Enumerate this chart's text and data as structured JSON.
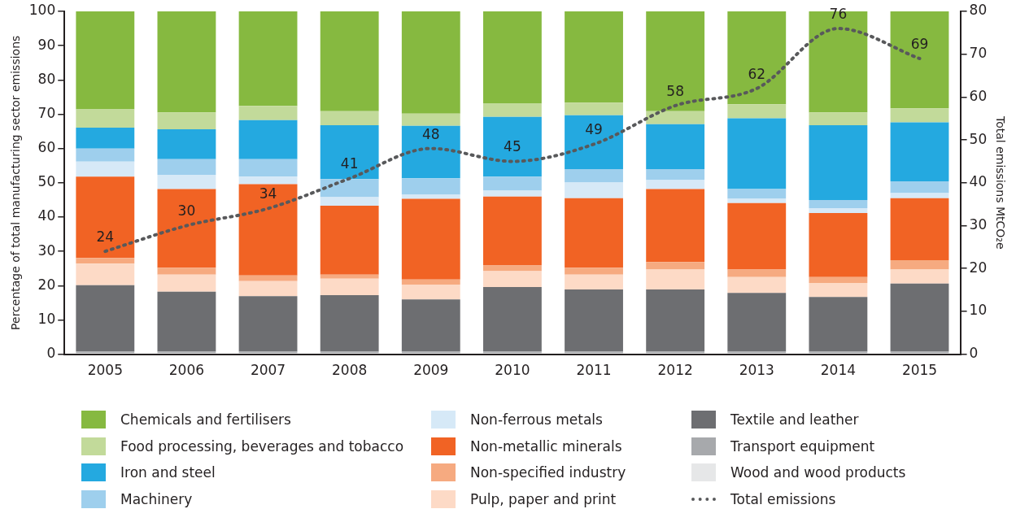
{
  "chart_data": {
    "type": "bar",
    "stacked": true,
    "ylabel": "Percentage of total manufacturing sector emissions",
    "y2label": "Total emissions MtCO₂e",
    "categories": [
      "2005",
      "2006",
      "2007",
      "2008",
      "2009",
      "2010",
      "2011",
      "2012",
      "2013",
      "2014",
      "2015"
    ],
    "ylim": [
      0,
      100
    ],
    "yticks": [
      0,
      10,
      20,
      30,
      40,
      50,
      60,
      70,
      80,
      90,
      100
    ],
    "y2lim": [
      0,
      80
    ],
    "y2ticks": [
      0,
      10,
      20,
      30,
      40,
      50,
      60,
      70,
      80
    ],
    "grid": false,
    "legend": "bottom",
    "series": [
      {
        "name": "Wood and wood products",
        "color": "#e6e7e8",
        "values": [
          0.3,
          0.3,
          0.3,
          0.3,
          0.3,
          0.3,
          0.3,
          0.3,
          0.3,
          0.3,
          0.3
        ]
      },
      {
        "name": "Transport equipment",
        "color": "#a7a9ac",
        "values": [
          0.5,
          0.5,
          0.5,
          0.5,
          0.5,
          0.5,
          0.5,
          0.5,
          0.5,
          0.5,
          0.5
        ]
      },
      {
        "name": "Textile and leather",
        "color": "#6d6e71",
        "values": [
          19.3,
          17.4,
          16.1,
          16.4,
          15.2,
          18.8,
          18.1,
          18.1,
          17.1,
          15.9,
          19.8
        ]
      },
      {
        "name": "Pulp, paper and print",
        "color": "#fddac6",
        "values": [
          6.3,
          5.0,
          4.4,
          4.8,
          4.3,
          4.6,
          4.3,
          5.8,
          4.6,
          4.1,
          4.1
        ]
      },
      {
        "name": "Non-specified industry",
        "color": "#f6aa80",
        "values": [
          1.7,
          2.0,
          1.7,
          1.2,
          1.5,
          1.7,
          2.0,
          2.2,
          2.2,
          1.7,
          2.7
        ]
      },
      {
        "name": "Non-metallic minerals",
        "color": "#f16324",
        "values": [
          23.7,
          23.0,
          26.6,
          20.1,
          23.5,
          20.1,
          20.3,
          21.3,
          19.4,
          18.7,
          18.1
        ]
      },
      {
        "name": "Non-ferrous metals",
        "color": "#d6e9f7",
        "values": [
          4.4,
          4.1,
          2.2,
          2.5,
          1.2,
          1.7,
          4.6,
          2.6,
          1.2,
          1.4,
          1.5
        ]
      },
      {
        "name": "Machinery",
        "color": "#9ecfed",
        "values": [
          3.8,
          4.6,
          5.1,
          5.3,
          4.8,
          4.1,
          3.9,
          3.2,
          2.9,
          2.4,
          3.4
        ]
      },
      {
        "name": "Iron and steel",
        "color": "#24a9e0",
        "values": [
          6.1,
          8.7,
          11.4,
          15.7,
          15.3,
          17.4,
          15.7,
          13.1,
          20.6,
          21.8,
          17.2
        ]
      },
      {
        "name": "Food processing, beverages and tobacco",
        "color": "#c2da9a",
        "values": [
          5.3,
          4.9,
          4.1,
          4.1,
          3.6,
          3.9,
          3.7,
          3.8,
          4.1,
          3.7,
          4.1
        ]
      },
      {
        "name": "Chemicals and fertilisers",
        "color": "#86b940",
        "values": [
          28.6,
          29.5,
          27.6,
          29.1,
          29.8,
          26.9,
          26.6,
          29.1,
          27.1,
          29.5,
          28.3
        ]
      },
      {
        "name": "Total emissions",
        "type": "line",
        "axis": "y2",
        "color": "#58595b",
        "line_style": "dotted",
        "marker": "none",
        "data_labels": true,
        "values": [
          24,
          30,
          34,
          41,
          48,
          45,
          49,
          58,
          62,
          76,
          69
        ]
      }
    ]
  }
}
